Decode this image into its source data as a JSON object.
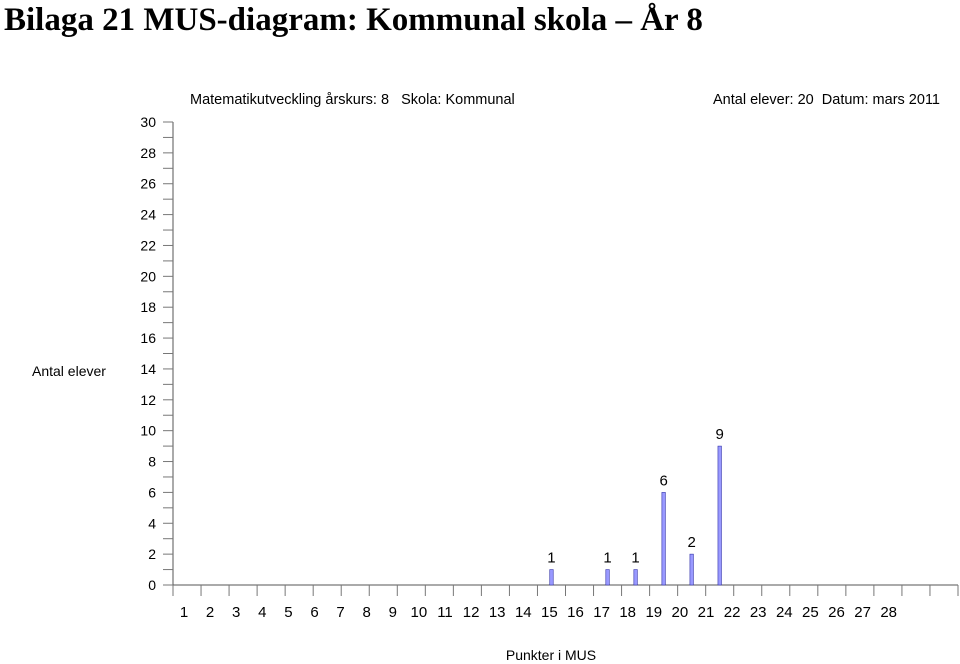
{
  "page": {
    "title": "Bilaga 21 MUS-diagram: Kommunal skola – År 8"
  },
  "chart_data": {
    "type": "bar",
    "header": {
      "left": "Matematikutveckling årskurs: 8   Skola: Kommunal",
      "right": "Antal elever: 20  Datum: mars 2011"
    },
    "xlabel": "Punkter i MUS",
    "ylabel": "Antal elever",
    "ylim": [
      0,
      30
    ],
    "y_ticks": [
      0,
      2,
      4,
      6,
      8,
      10,
      12,
      14,
      16,
      18,
      20,
      22,
      24,
      26,
      28,
      30
    ],
    "categories": [
      1,
      2,
      3,
      4,
      5,
      6,
      7,
      8,
      9,
      10,
      11,
      12,
      13,
      14,
      15,
      16,
      17,
      18,
      19,
      20,
      21,
      22,
      23,
      24,
      25,
      26,
      27,
      28
    ],
    "values": [
      0,
      0,
      0,
      0,
      0,
      0,
      0,
      0,
      0,
      0,
      0,
      0,
      0,
      1,
      0,
      1,
      1,
      6,
      2,
      9,
      0,
      0,
      0,
      0,
      0,
      0,
      0,
      0
    ],
    "bar_color": "#9999ff",
    "bar_stroke": "#3333aa",
    "grid": false,
    "legend": "none"
  }
}
